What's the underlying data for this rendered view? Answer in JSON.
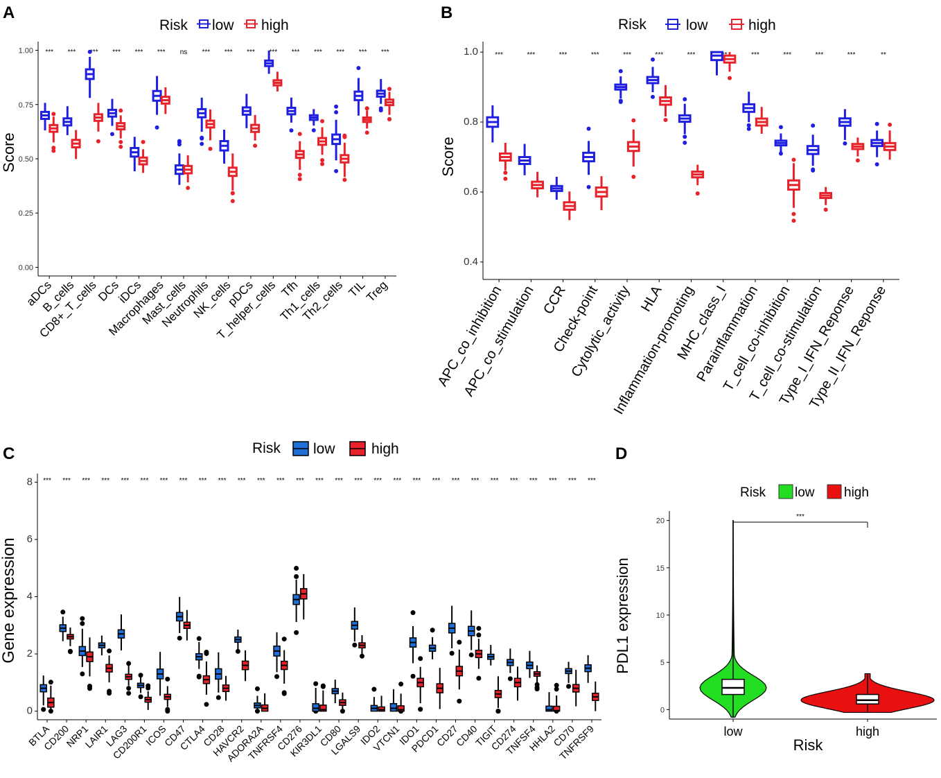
{
  "chart_data": [
    {
      "panel": "A",
      "type": "box",
      "ylabel": "Score",
      "ylim": [
        0,
        1
      ],
      "yticks": [
        "0.00",
        "0.25",
        "0.50",
        "0.75",
        "1.00"
      ],
      "legend": {
        "title": "Risk",
        "items": [
          "low",
          "high"
        ],
        "colors": [
          "#1f1fe0",
          "#e8222a"
        ],
        "placement": "top"
      },
      "categories": [
        "aDCs",
        "B_cells",
        "CD8+_T_cells",
        "DCs",
        "iDCs",
        "Macrophages",
        "Mast_cells",
        "Neutrophils",
        "NK_cells",
        "pDCs",
        "T_helper_cells",
        "Tfh",
        "Th1_cells",
        "Th2_cells",
        "TIL",
        "Treg"
      ],
      "significance": [
        "***",
        "***",
        "***",
        "***",
        "***",
        "***",
        "ns",
        "***",
        "***",
        "***",
        "***",
        "***",
        "***",
        "***",
        "***",
        "***"
      ],
      "series": [
        {
          "name": "low",
          "median": [
            0.7,
            0.67,
            0.89,
            0.71,
            0.53,
            0.79,
            0.45,
            0.71,
            0.56,
            0.72,
            0.94,
            0.72,
            0.69,
            0.59,
            0.79,
            0.8
          ]
        },
        {
          "name": "high",
          "median": [
            0.64,
            0.57,
            0.69,
            0.65,
            0.49,
            0.77,
            0.45,
            0.66,
            0.44,
            0.64,
            0.85,
            0.52,
            0.58,
            0.5,
            0.68,
            0.76
          ]
        }
      ]
    },
    {
      "panel": "B",
      "type": "box",
      "ylabel": "Score",
      "ylim": [
        0.35,
        1.03
      ],
      "yticks": [
        "0.4",
        "0.6",
        "0.8",
        "1.0"
      ],
      "legend": {
        "title": "Risk",
        "items": [
          "low",
          "high"
        ],
        "colors": [
          "#1f1fe0",
          "#e8222a"
        ],
        "placement": "top"
      },
      "categories": [
        "APC_co_inhibition",
        "APC_co_stimulation",
        "CCR",
        "Check-point",
        "Cytolytic_activity",
        "HLA",
        "Inflammation-promoting",
        "MHC_class_I",
        "Parainflammation",
        "T_cell_co-inhibition",
        "T_cell_co-stimulation",
        "Type_I_IFN_Reponse",
        "Type_II_IFN_Reponse"
      ],
      "significance": [
        "***",
        "***",
        "***",
        "***",
        "***",
        "***",
        "***",
        "***",
        "***",
        "***",
        "***",
        "***",
        "**"
      ],
      "series": [
        {
          "name": "low",
          "median": [
            0.8,
            0.69,
            0.61,
            0.7,
            0.9,
            0.92,
            0.81,
            0.99,
            0.84,
            0.74,
            0.72,
            0.8,
            0.74
          ]
        },
        {
          "name": "high",
          "median": [
            0.7,
            0.62,
            0.56,
            0.6,
            0.73,
            0.86,
            0.65,
            0.98,
            0.8,
            0.62,
            0.59,
            0.73,
            0.73
          ]
        }
      ]
    },
    {
      "panel": "C",
      "type": "box",
      "ylabel": "Gene expression",
      "ylim": [
        -0.3,
        8.3
      ],
      "yticks": [
        "0",
        "2",
        "4",
        "6",
        "8"
      ],
      "legend": {
        "title": "Risk",
        "items": [
          "low",
          "high"
        ],
        "colors": [
          "#1f6fd6",
          "#e8222a"
        ],
        "placement": "top"
      },
      "categories": [
        "BTLA",
        "CD200",
        "NRP1",
        "LAIR1",
        "LAG3",
        "CD200R1",
        "ICOS",
        "CD47",
        "CTLA4",
        "CD28",
        "HAVCR2",
        "ADORA2A",
        "TNFRSF4",
        "CD276",
        "KIR3DL1",
        "CD80",
        "LGALS9",
        "IDO2",
        "VTCN1",
        "IDO1",
        "PDCD1",
        "CD27",
        "CD40",
        "TIGIT",
        "CD274",
        "TNFSF4",
        "HHLA2",
        "CD70",
        "TNFRSF9"
      ],
      "significance": [
        "***",
        "***",
        "***",
        "***",
        "***",
        "***",
        "***",
        "***",
        "***",
        "***",
        "***",
        "***",
        "***",
        "***",
        "***",
        "***",
        "***",
        "***",
        "***",
        "***",
        "***",
        "***",
        "***",
        "***",
        "***",
        "***",
        "***",
        "***",
        "***"
      ],
      "series": [
        {
          "name": "low",
          "median": [
            0.8,
            2.9,
            2.1,
            2.3,
            2.7,
            0.9,
            1.3,
            3.3,
            1.9,
            1.3,
            2.5,
            0.2,
            2.1,
            3.9,
            0.1,
            0.7,
            3.0,
            0.1,
            0.1,
            2.4,
            2.2,
            2.9,
            2.8,
            1.9,
            1.7,
            1.6,
            0.05,
            1.4,
            1.5
          ]
        },
        {
          "name": "high",
          "median": [
            0.3,
            2.6,
            1.9,
            1.5,
            1.2,
            0.4,
            0.5,
            3.0,
            1.1,
            0.8,
            1.6,
            0.1,
            1.6,
            4.1,
            0.05,
            0.3,
            2.3,
            0.05,
            0.05,
            1.0,
            0.8,
            1.4,
            2.0,
            0.6,
            1.0,
            1.3,
            0.02,
            0.8,
            0.5
          ]
        }
      ]
    },
    {
      "panel": "D",
      "type": "violin",
      "ylabel": "PDL1 expression",
      "xlabel": "Risk",
      "ylim": [
        -1,
        21
      ],
      "yticks": [
        "0",
        "5",
        "10",
        "15",
        "20"
      ],
      "legend": {
        "title": "Risk",
        "items": [
          "low",
          "high"
        ],
        "colors": [
          "#22dd22",
          "#e81010"
        ],
        "placement": "top"
      },
      "categories": [
        "low",
        "high"
      ],
      "significance": [
        "***"
      ],
      "series": [
        {
          "name": "low",
          "median": 2.3,
          "q1": 1.6,
          "q3": 3.2,
          "max": 20
        },
        {
          "name": "high",
          "median": 1.0,
          "q1": 0.6,
          "q3": 1.6,
          "max": 3.8
        }
      ]
    }
  ],
  "panel_labels": [
    "A",
    "B",
    "C",
    "D"
  ]
}
